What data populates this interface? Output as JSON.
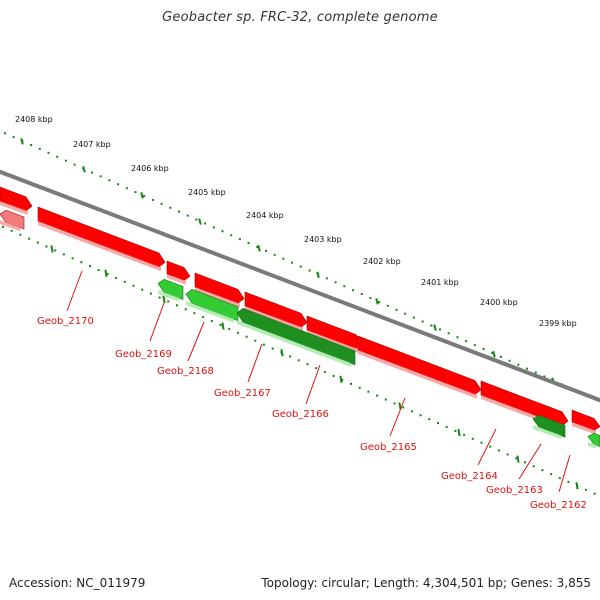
{
  "title": "Geobacter sp. FRC-32, complete genome",
  "footer": {
    "accession": "Accession: NC_011979",
    "topology": "Topology: circular; Length: 4,304,501 bp; Genes: 3,855"
  },
  "colors": {
    "forward_gene": "#ff0000",
    "reverse_gene": "#33cc33",
    "reverse_gene_dark": "#1f8f1f",
    "backbone": "#7a7a7a",
    "ticks": "#118811",
    "labels": "#dd1111"
  },
  "scale_labels": [
    "2408 kbp",
    "2407 kbp",
    "2406 kbp",
    "2405 kbp",
    "2404 kbp",
    "2403 kbp",
    "2402 kbp",
    "2401 kbp",
    "2400 kbp",
    "2399 kbp"
  ],
  "genes": [
    {
      "label": "Geob_2170",
      "strand": "forward"
    },
    {
      "label": "Geob_2169",
      "strand": "reverse"
    },
    {
      "label": "Geob_2168",
      "strand": "reverse"
    },
    {
      "label": "Geob_2167",
      "strand": "reverse"
    },
    {
      "label": "Geob_2166",
      "strand": "forward"
    },
    {
      "label": "Geob_2165",
      "strand": "forward"
    },
    {
      "label": "Geob_2164",
      "strand": "forward"
    },
    {
      "label": "Geob_2163",
      "strand": "reverse"
    },
    {
      "label": "Geob_2162",
      "strand": "forward"
    }
  ]
}
